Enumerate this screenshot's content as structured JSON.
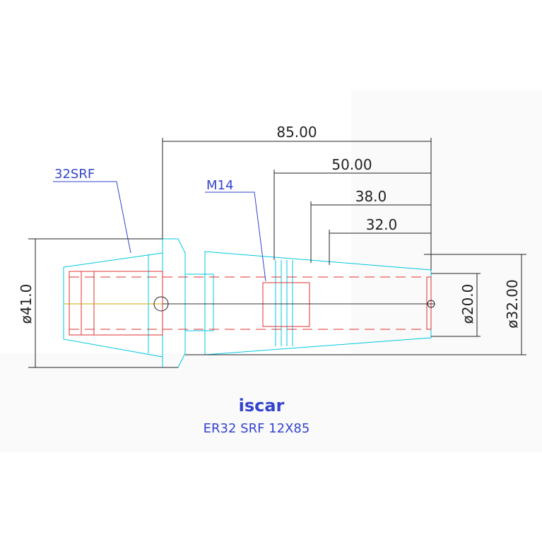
{
  "dimensions": {
    "overall_length": "85.00",
    "length_50": "50.00",
    "length_38": "38.0",
    "length_32": "32.0",
    "flange_diameter": "ø41.0",
    "bore_diameter": "ø20.0",
    "shank_diameter": "ø32.00"
  },
  "labels": {
    "collet": "32SRF",
    "thread": "M14"
  },
  "footer": {
    "brand": "iscar",
    "model": "ER32 SRF 12X85"
  }
}
